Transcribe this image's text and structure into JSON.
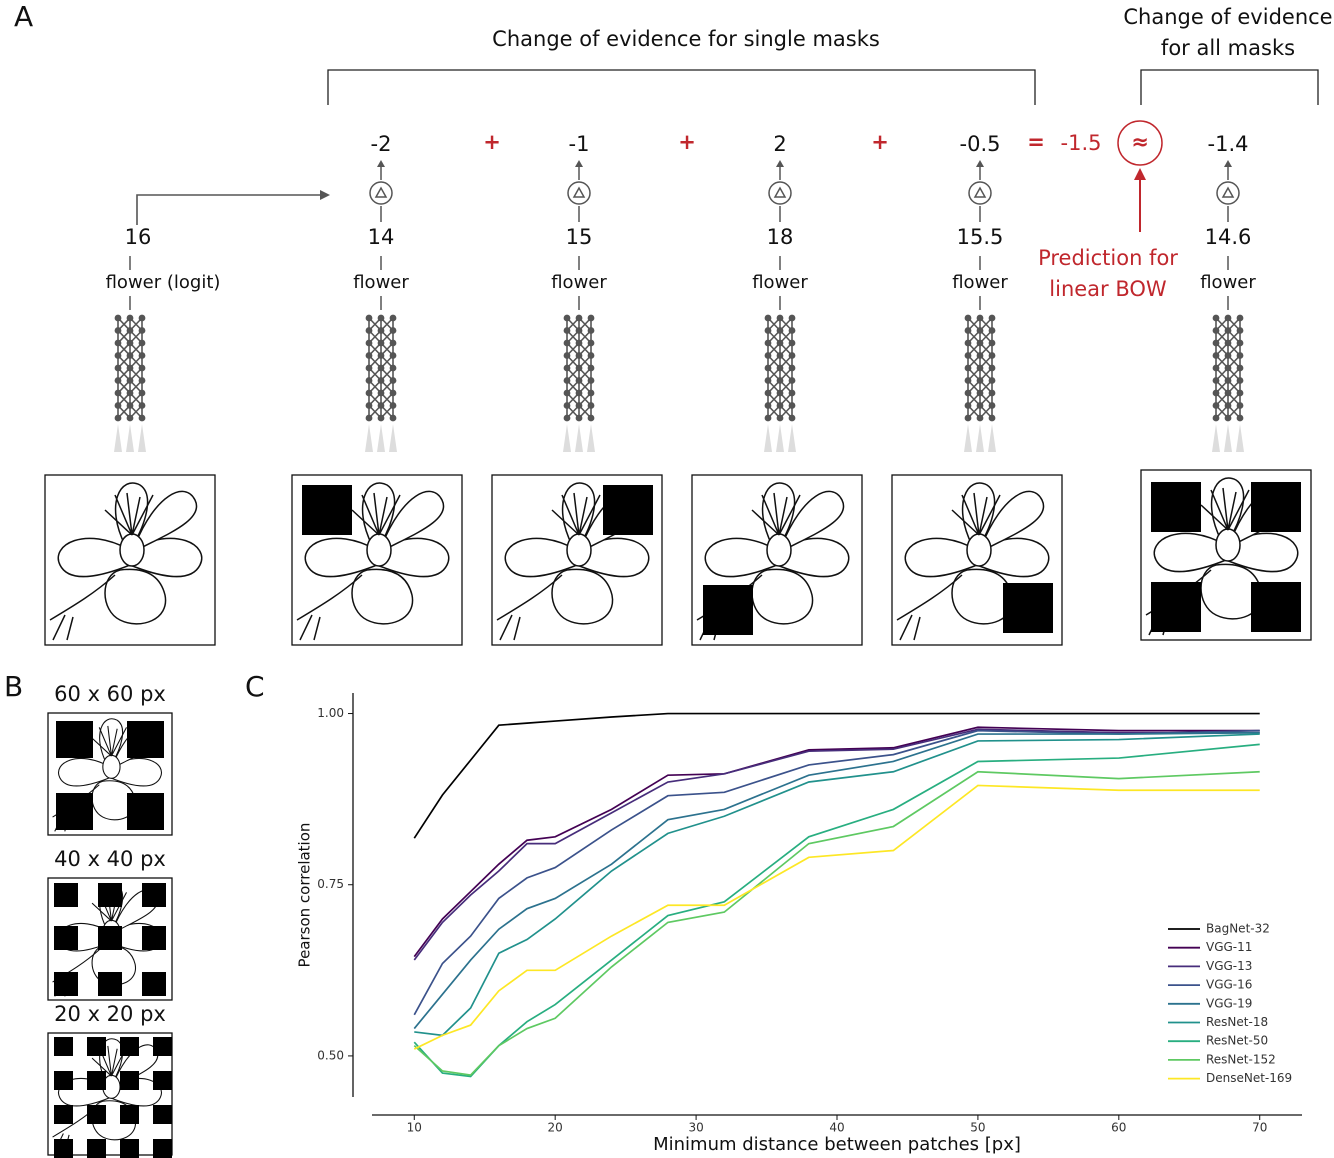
{
  "panel_a": {
    "label": "A",
    "title_single": "Change of evidence for single masks",
    "title_all": [
      "Change of evidence",
      "for all masks"
    ],
    "columns": [
      {
        "logit": "16",
        "label": "flower (logit)"
      },
      {
        "delta": "-2",
        "logit": "14",
        "label": "flower"
      },
      {
        "delta": "-1",
        "logit": "15",
        "label": "flower"
      },
      {
        "delta": "2",
        "logit": "18",
        "label": "flower"
      },
      {
        "delta": "-0.5",
        "logit": "15.5",
        "label": "flower"
      },
      {
        "delta": "-1.4",
        "logit": "14.6",
        "label": "flower"
      }
    ],
    "operators": [
      "+",
      "+",
      "+",
      "="
    ],
    "sum": "-1.5",
    "approx": "≈",
    "note": [
      "Prediction for",
      "linear BOW"
    ]
  },
  "panel_b": {
    "label": "B",
    "sizes": [
      "60 x 60 px",
      "40 x 40 px",
      "20 x 20 px"
    ]
  },
  "panel_c": {
    "label": "C"
  },
  "chart_data": {
    "type": "line",
    "x_label": "Minimum distance between patches [px]",
    "y_label": "Pearson correlation",
    "x": [
      10,
      12,
      14,
      16,
      18,
      20,
      24,
      28,
      32,
      38,
      44,
      50,
      60,
      70
    ],
    "xlim": [
      7,
      73
    ],
    "xticks": [
      10,
      20,
      30,
      40,
      50,
      60,
      70
    ],
    "ylim": [
      0.44,
      1.03
    ],
    "yticks": [
      {
        "value": 0.5,
        "label": "0.50"
      },
      {
        "value": 0.75,
        "label": "0.75"
      },
      {
        "value": 1.0,
        "label": "1.00"
      }
    ],
    "legend": "lower right",
    "series": [
      {
        "name": "BagNet-32",
        "color": "#000000",
        "values": [
          0.818,
          0.881,
          0.932,
          0.983,
          0.986,
          0.989,
          0.995,
          1.0,
          1.0,
          1.0,
          1.0,
          1.0,
          1.0,
          1.0
        ]
      },
      {
        "name": "VGG-11",
        "color": "#440154",
        "values": [
          0.645,
          0.7,
          0.74,
          0.78,
          0.815,
          0.82,
          0.86,
          0.91,
          0.912,
          0.947,
          0.95,
          0.98,
          0.975,
          0.975
        ]
      },
      {
        "name": "VGG-13",
        "color": "#472d7b",
        "values": [
          0.64,
          0.695,
          0.735,
          0.77,
          0.81,
          0.81,
          0.855,
          0.9,
          0.912,
          0.945,
          0.948,
          0.977,
          0.972,
          0.972
        ]
      },
      {
        "name": "VGG-16",
        "color": "#3b528b",
        "values": [
          0.56,
          0.635,
          0.675,
          0.73,
          0.76,
          0.775,
          0.83,
          0.88,
          0.885,
          0.925,
          0.94,
          0.975,
          0.97,
          0.975
        ]
      },
      {
        "name": "VGG-19",
        "color": "#2c728e",
        "values": [
          0.54,
          0.59,
          0.64,
          0.685,
          0.715,
          0.73,
          0.78,
          0.845,
          0.86,
          0.91,
          0.93,
          0.97,
          0.97,
          0.972
        ]
      },
      {
        "name": "ResNet-18",
        "color": "#21918c",
        "values": [
          0.535,
          0.53,
          0.57,
          0.65,
          0.67,
          0.7,
          0.77,
          0.825,
          0.85,
          0.9,
          0.915,
          0.96,
          0.962,
          0.97
        ]
      },
      {
        "name": "ResNet-50",
        "color": "#28ae80",
        "values": [
          0.52,
          0.475,
          0.47,
          0.515,
          0.55,
          0.575,
          0.64,
          0.705,
          0.725,
          0.82,
          0.86,
          0.93,
          0.935,
          0.955
        ]
      },
      {
        "name": "ResNet-152",
        "color": "#5ec962",
        "values": [
          0.515,
          0.478,
          0.472,
          0.515,
          0.54,
          0.555,
          0.63,
          0.695,
          0.71,
          0.81,
          0.835,
          0.915,
          0.905,
          0.915
        ]
      },
      {
        "name": "DenseNet-169",
        "color": "#fde725",
        "values": [
          0.51,
          0.53,
          0.545,
          0.595,
          0.625,
          0.625,
          0.675,
          0.72,
          0.72,
          0.79,
          0.8,
          0.895,
          0.888,
          0.888
        ]
      }
    ]
  }
}
